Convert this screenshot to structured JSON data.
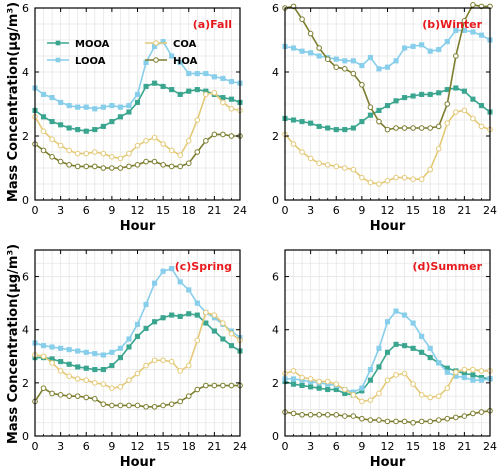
{
  "figure": {
    "ylabel": "Mass Concentration(μg/m³)",
    "xlabel": "Hour"
  },
  "chart_data": [
    {
      "type": "line",
      "panel_label": "(a)Fall",
      "xlabel": "Hour",
      "ylabel": "Mass Concentration(μg/m³)",
      "xlim": [
        0,
        24
      ],
      "ylim": [
        0,
        6
      ],
      "xticks": [
        0,
        3,
        6,
        9,
        12,
        15,
        18,
        21,
        24
      ],
      "yticks": [
        0,
        2,
        4,
        6
      ],
      "grid": true,
      "legend": "top-left",
      "x": [
        0,
        1,
        2,
        3,
        4,
        5,
        6,
        7,
        8,
        9,
        10,
        11,
        12,
        13,
        14,
        15,
        16,
        17,
        18,
        19,
        20,
        21,
        22,
        23,
        24
      ],
      "series": [
        {
          "name": "MOOA",
          "color": "#3aa58f",
          "marker": "square-filled",
          "values": [
            2.8,
            2.6,
            2.45,
            2.35,
            2.25,
            2.2,
            2.15,
            2.2,
            2.3,
            2.45,
            2.6,
            2.75,
            3.05,
            3.55,
            3.65,
            3.55,
            3.45,
            3.3,
            3.4,
            3.45,
            3.4,
            3.3,
            3.2,
            3.15,
            3.05
          ]
        },
        {
          "name": "LOOA",
          "color": "#87ceeb",
          "marker": "square-filled",
          "values": [
            3.5,
            3.3,
            3.2,
            3.05,
            2.95,
            2.9,
            2.9,
            2.85,
            2.9,
            2.95,
            2.9,
            2.95,
            3.3,
            4.3,
            4.8,
            4.95,
            4.5,
            4.3,
            3.95,
            3.95,
            3.95,
            3.85,
            3.8,
            3.7,
            3.65
          ]
        },
        {
          "name": "COA",
          "color": "#e4c978",
          "marker": "circle-open",
          "values": [
            2.6,
            2.15,
            1.9,
            1.7,
            1.55,
            1.45,
            1.45,
            1.5,
            1.45,
            1.35,
            1.3,
            1.45,
            1.7,
            1.85,
            1.95,
            1.75,
            1.55,
            1.4,
            1.85,
            2.5,
            3.3,
            3.35,
            3.05,
            2.85,
            2.8
          ]
        },
        {
          "name": "HOA",
          "color": "#7d7d2f",
          "marker": "circle-open",
          "values": [
            1.75,
            1.55,
            1.35,
            1.2,
            1.1,
            1.05,
            1.05,
            1.05,
            1.0,
            1.0,
            1.0,
            1.05,
            1.1,
            1.2,
            1.2,
            1.1,
            1.05,
            1.05,
            1.15,
            1.5,
            1.85,
            2.05,
            2.05,
            2.0,
            2.0
          ]
        }
      ]
    },
    {
      "type": "line",
      "panel_label": "(b)Winter",
      "xlabel": "Hour",
      "ylabel": "",
      "xlim": [
        0,
        24
      ],
      "ylim": [
        0,
        6
      ],
      "xticks": [
        0,
        3,
        6,
        9,
        12,
        15,
        18,
        21,
        24
      ],
      "yticks": [
        0,
        2,
        4,
        6
      ],
      "grid": true,
      "x": [
        0,
        1,
        2,
        3,
        4,
        5,
        6,
        7,
        8,
        9,
        10,
        11,
        12,
        13,
        14,
        15,
        16,
        17,
        18,
        19,
        20,
        21,
        22,
        23,
        24
      ],
      "series": [
        {
          "name": "MOOA",
          "color": "#3aa58f",
          "marker": "square-filled",
          "values": [
            2.55,
            2.5,
            2.45,
            2.4,
            2.3,
            2.25,
            2.2,
            2.2,
            2.25,
            2.45,
            2.65,
            2.8,
            2.95,
            3.1,
            3.2,
            3.25,
            3.3,
            3.3,
            3.35,
            3.45,
            3.5,
            3.4,
            3.15,
            2.95,
            2.75
          ]
        },
        {
          "name": "LOOA",
          "color": "#87ceeb",
          "marker": "square-filled",
          "values": [
            4.8,
            4.75,
            4.65,
            4.6,
            4.5,
            4.45,
            4.4,
            4.35,
            4.35,
            4.2,
            4.45,
            4.1,
            4.15,
            4.35,
            4.75,
            4.8,
            4.85,
            4.65,
            4.7,
            4.95,
            5.3,
            5.3,
            5.25,
            5.15,
            5.0
          ]
        },
        {
          "name": "COA",
          "color": "#e4c978",
          "marker": "circle-open",
          "values": [
            2.05,
            1.75,
            1.5,
            1.3,
            1.15,
            1.1,
            1.05,
            1.0,
            0.95,
            0.7,
            0.55,
            0.5,
            0.6,
            0.7,
            0.7,
            0.65,
            0.65,
            0.95,
            1.6,
            2.4,
            2.75,
            2.8,
            2.55,
            2.3,
            2.2
          ]
        },
        {
          "name": "HOA",
          "color": "#7d7d2f",
          "marker": "circle-open",
          "values": [
            6.0,
            6.05,
            5.65,
            5.2,
            4.75,
            4.4,
            4.15,
            4.1,
            3.95,
            3.6,
            2.9,
            2.45,
            2.2,
            2.25,
            2.25,
            2.25,
            2.25,
            2.25,
            2.3,
            3.0,
            4.5,
            5.6,
            6.1,
            6.05,
            6.05
          ]
        }
      ]
    },
    {
      "type": "line",
      "panel_label": "(c)Spring",
      "xlabel": "Hour",
      "ylabel": "Mass Concentration(μg/m³)",
      "xlim": [
        0,
        24
      ],
      "ylim": [
        0,
        7
      ],
      "xticks": [
        0,
        3,
        6,
        9,
        12,
        15,
        18,
        21,
        24
      ],
      "yticks": [
        0,
        2,
        4,
        6
      ],
      "grid": true,
      "x": [
        0,
        1,
        2,
        3,
        4,
        5,
        6,
        7,
        8,
        9,
        10,
        11,
        12,
        13,
        14,
        15,
        16,
        17,
        18,
        19,
        20,
        21,
        22,
        23,
        24
      ],
      "series": [
        {
          "name": "MOOA",
          "color": "#3aa58f",
          "marker": "square-filled",
          "values": [
            2.95,
            2.95,
            2.9,
            2.8,
            2.7,
            2.6,
            2.55,
            2.5,
            2.5,
            2.65,
            2.95,
            3.35,
            3.75,
            4.05,
            4.3,
            4.45,
            4.55,
            4.5,
            4.6,
            4.55,
            4.25,
            3.95,
            3.65,
            3.4,
            3.2
          ]
        },
        {
          "name": "LOOA",
          "color": "#87ceeb",
          "marker": "square-filled",
          "values": [
            3.5,
            3.4,
            3.35,
            3.3,
            3.25,
            3.2,
            3.15,
            3.1,
            3.05,
            3.15,
            3.3,
            3.65,
            4.2,
            4.95,
            5.75,
            6.2,
            6.3,
            5.8,
            5.5,
            5.0,
            4.65,
            4.45,
            4.2,
            3.95,
            3.7
          ]
        },
        {
          "name": "COA",
          "color": "#e4c978",
          "marker": "circle-open",
          "values": [
            3.05,
            3.0,
            2.75,
            2.45,
            2.25,
            2.15,
            2.1,
            2.0,
            1.95,
            1.8,
            1.85,
            2.1,
            2.35,
            2.65,
            2.85,
            2.85,
            2.8,
            2.45,
            2.65,
            3.6,
            4.65,
            4.55,
            4.25,
            3.85,
            3.6
          ]
        },
        {
          "name": "HOA",
          "color": "#7d7d2f",
          "marker": "circle-open",
          "values": [
            1.3,
            1.8,
            1.6,
            1.55,
            1.5,
            1.5,
            1.45,
            1.4,
            1.2,
            1.15,
            1.15,
            1.15,
            1.15,
            1.1,
            1.1,
            1.15,
            1.2,
            1.3,
            1.5,
            1.75,
            1.9,
            1.9,
            1.9,
            1.9,
            1.9
          ]
        }
      ]
    },
    {
      "type": "line",
      "panel_label": "(d)Summer",
      "xlabel": "Hour",
      "ylabel": "",
      "xlim": [
        0,
        24
      ],
      "ylim": [
        0,
        7
      ],
      "xticks": [
        0,
        3,
        6,
        9,
        12,
        15,
        18,
        21,
        24
      ],
      "yticks": [
        0,
        2,
        4,
        6
      ],
      "grid": true,
      "x": [
        0,
        1,
        2,
        3,
        4,
        5,
        6,
        7,
        8,
        9,
        10,
        11,
        12,
        13,
        14,
        15,
        16,
        17,
        18,
        19,
        20,
        21,
        22,
        23,
        24
      ],
      "series": [
        {
          "name": "MOOA",
          "color": "#3aa58f",
          "marker": "square-filled",
          "values": [
            2.05,
            1.95,
            1.9,
            1.85,
            1.8,
            1.75,
            1.75,
            1.6,
            1.55,
            1.7,
            2.1,
            2.6,
            3.15,
            3.45,
            3.4,
            3.3,
            3.15,
            2.95,
            2.75,
            2.55,
            2.45,
            2.35,
            2.3,
            2.2,
            2.15
          ]
        },
        {
          "name": "LOOA",
          "color": "#87ceeb",
          "marker": "square-filled",
          "values": [
            2.15,
            2.15,
            2.1,
            2.05,
            2.0,
            1.95,
            1.9,
            1.75,
            1.65,
            1.8,
            2.5,
            3.3,
            4.3,
            4.7,
            4.55,
            4.25,
            3.75,
            3.3,
            2.75,
            2.4,
            2.25,
            2.2,
            2.1,
            2.1,
            2.15
          ]
        },
        {
          "name": "COA",
          "color": "#e4c978",
          "marker": "circle-open",
          "values": [
            2.35,
            2.45,
            2.2,
            2.15,
            2.05,
            2.05,
            1.95,
            1.75,
            1.55,
            1.3,
            1.35,
            1.6,
            2.1,
            2.3,
            2.35,
            1.95,
            1.55,
            1.45,
            1.5,
            1.8,
            2.4,
            2.5,
            2.5,
            2.45,
            2.45
          ]
        },
        {
          "name": "HOA",
          "color": "#7d7d2f",
          "marker": "circle-open",
          "values": [
            0.9,
            0.85,
            0.8,
            0.8,
            0.8,
            0.8,
            0.8,
            0.75,
            0.75,
            0.65,
            0.6,
            0.6,
            0.55,
            0.55,
            0.55,
            0.5,
            0.55,
            0.55,
            0.6,
            0.65,
            0.7,
            0.75,
            0.85,
            0.9,
            0.95
          ]
        }
      ]
    }
  ]
}
